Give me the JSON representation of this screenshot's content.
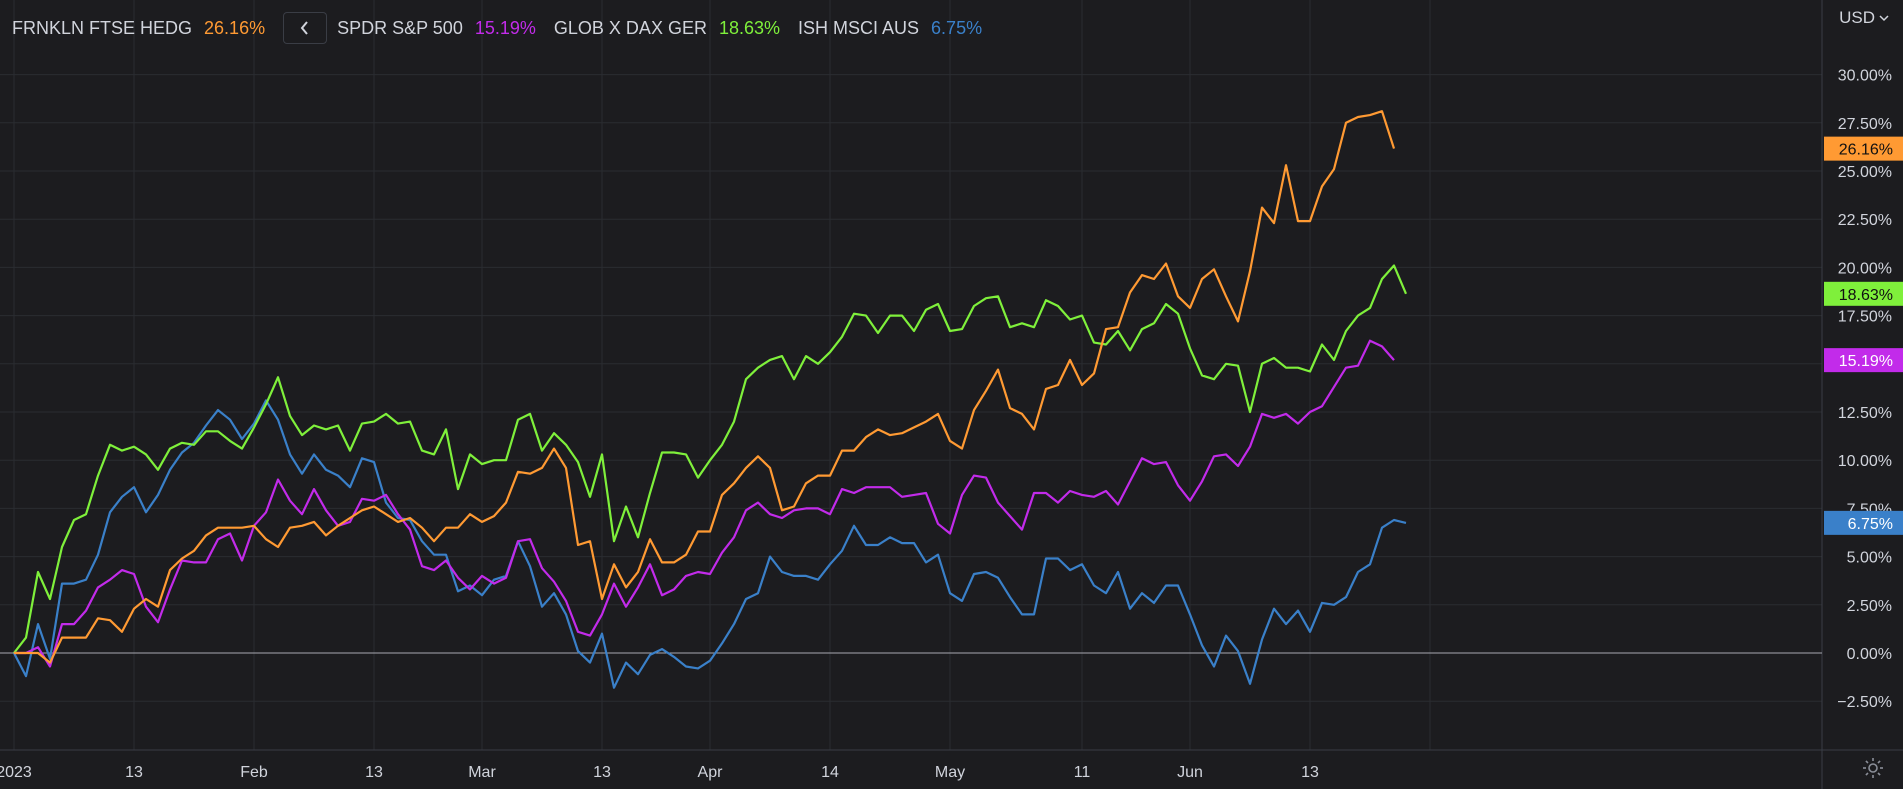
{
  "legend": [
    {
      "name": "FRNKLN FTSE HEDG",
      "value": "26.16%",
      "color": "#ff9a33"
    },
    {
      "name": "SPDR S&P 500",
      "value": "15.19%",
      "color": "#c22bea"
    },
    {
      "name": "GLOB X DAX GER",
      "value": "18.63%",
      "color": "#7ff03b"
    },
    {
      "name": "ISH MSCI AUS",
      "value": "6.75%",
      "color": "#3a80c9"
    }
  ],
  "toolbar": {
    "currency": "USD",
    "collapse_icon": "chevron-left-icon",
    "settings_icon": "gear-icon"
  },
  "chart_data": {
    "type": "line",
    "ylim": [
      -4.5,
      33
    ],
    "y_ticks": [
      -2.5,
      0,
      2.5,
      5,
      7.5,
      10,
      12.5,
      15,
      17.5,
      20,
      22.5,
      25,
      27.5,
      30
    ],
    "y_tick_labels": [
      "−2.50%",
      "0.00%",
      "2.50%",
      "5.00%",
      "7.50%",
      "10.00%",
      "12.50%",
      "15.00%",
      "17.50%",
      "20.00%",
      "22.50%",
      "25.00%",
      "27.50%",
      "30.00%"
    ],
    "x_ticks": [
      0,
      10,
      20,
      30,
      39,
      49,
      58,
      68,
      78,
      89,
      98,
      108,
      118
    ],
    "x_tick_labels": [
      "2023",
      "13",
      "Feb",
      "13",
      "Mar",
      "13",
      "Apr",
      "14",
      "May",
      "11",
      "Jun",
      "13",
      ""
    ],
    "xlim": [
      0,
      117
    ],
    "grid": true,
    "legend_position": "top-left",
    "series": [
      {
        "name": "FRNKLN FTSE HEDG",
        "color": "#ff9a33",
        "last_label": "26.16%",
        "values": [
          0,
          0,
          0,
          -0.5,
          0.8,
          0.8,
          0.8,
          1.8,
          1.7,
          1.1,
          2.3,
          2.8,
          2.4,
          4.3,
          4.9,
          5.3,
          6.1,
          6.5,
          6.5,
          6.5,
          6.6,
          5.9,
          5.5,
          6.5,
          6.6,
          6.8,
          6.1,
          6.6,
          7.0,
          7.4,
          7.6,
          7.2,
          6.8,
          7.0,
          6.5,
          5.8,
          6.5,
          6.5,
          7.2,
          6.8,
          7.1,
          7.8,
          9.4,
          9.3,
          9.6,
          10.6,
          9.6,
          5.6,
          5.8,
          2.8,
          4.6,
          3.4,
          4.2,
          5.9,
          4.7,
          4.7,
          5.1,
          6.3,
          6.3,
          8.2,
          8.8,
          9.6,
          10.2,
          9.6,
          7.4,
          7.6,
          8.8,
          9.2,
          9.2,
          10.5,
          10.5,
          11.2,
          11.6,
          11.3,
          11.4,
          11.7,
          12.0,
          12.4,
          11.0,
          10.6,
          12.6,
          13.6,
          14.7,
          12.7,
          12.4,
          11.6,
          13.7,
          13.9,
          15.2,
          13.9,
          14.5,
          16.8,
          16.9,
          18.7,
          19.6,
          19.4,
          20.2,
          18.5,
          17.9,
          19.4,
          19.9,
          18.5,
          17.2,
          19.8,
          23.1,
          22.3,
          25.3,
          22.4,
          22.4,
          24.2,
          25.1,
          27.5,
          27.8,
          27.9,
          28.1,
          26.16
        ]
      },
      {
        "name": "SPDR S&P 500",
        "color": "#c22bea",
        "last_label": "15.19%",
        "values": [
          0,
          0,
          0.3,
          -0.7,
          1.5,
          1.5,
          2.2,
          3.4,
          3.8,
          4.3,
          4.1,
          2.4,
          1.6,
          3.3,
          4.8,
          4.7,
          4.7,
          5.9,
          6.2,
          4.8,
          6.6,
          7.3,
          9.0,
          7.9,
          7.2,
          8.5,
          7.4,
          6.6,
          6.8,
          8.0,
          7.9,
          8.2,
          7.2,
          6.4,
          4.5,
          4.3,
          4.8,
          3.9,
          3.3,
          4.0,
          3.6,
          3.9,
          5.8,
          5.9,
          4.4,
          3.7,
          2.7,
          1.1,
          0.9,
          2.0,
          3.6,
          2.4,
          3.4,
          4.6,
          3.0,
          3.3,
          4.0,
          4.2,
          4.1,
          5.2,
          6.0,
          7.4,
          7.8,
          7.2,
          7.0,
          7.4,
          7.5,
          7.5,
          7.2,
          8.5,
          8.3,
          8.6,
          8.6,
          8.6,
          8.1,
          8.2,
          8.3,
          6.7,
          6.2,
          8.2,
          9.2,
          9.1,
          7.8,
          7.1,
          6.4,
          8.3,
          8.3,
          7.8,
          8.4,
          8.2,
          8.1,
          8.4,
          7.7,
          8.9,
          10.1,
          9.8,
          9.9,
          8.7,
          7.9,
          8.9,
          10.2,
          10.3,
          9.7,
          10.7,
          12.4,
          12.2,
          12.4,
          11.9,
          12.5,
          12.8,
          13.8,
          14.8,
          14.9,
          16.2,
          15.9,
          15.19
        ]
      },
      {
        "name": "GLOB X DAX GER",
        "color": "#7ff03b",
        "last_label": "18.63%",
        "values": [
          0,
          0.8,
          4.2,
          2.8,
          5.5,
          6.9,
          7.2,
          9.2,
          10.8,
          10.5,
          10.7,
          10.3,
          9.5,
          10.6,
          10.9,
          10.8,
          11.5,
          11.5,
          11.0,
          10.6,
          11.7,
          12.9,
          14.3,
          12.3,
          11.3,
          11.8,
          11.6,
          11.8,
          10.5,
          11.9,
          12.0,
          12.4,
          11.9,
          12.0,
          10.5,
          10.3,
          11.6,
          8.5,
          10.3,
          9.8,
          10.0,
          10.0,
          12.1,
          12.4,
          10.5,
          11.4,
          10.8,
          9.9,
          8.1,
          10.3,
          5.8,
          7.6,
          6.0,
          8.3,
          10.4,
          10.4,
          10.3,
          9.1,
          10.0,
          10.8,
          12.0,
          14.2,
          14.8,
          15.2,
          15.4,
          14.2,
          15.4,
          15.0,
          15.6,
          16.4,
          17.6,
          17.5,
          16.6,
          17.5,
          17.5,
          16.7,
          17.8,
          18.1,
          16.7,
          16.8,
          18.0,
          18.4,
          18.5,
          16.9,
          17.1,
          16.9,
          18.3,
          18.0,
          17.3,
          17.5,
          16.1,
          16.0,
          16.7,
          15.7,
          16.8,
          17.1,
          18.1,
          17.6,
          15.8,
          14.4,
          14.2,
          15.0,
          14.9,
          12.5,
          15.0,
          15.3,
          14.8,
          14.8,
          14.6,
          16.0,
          15.2,
          16.7,
          17.5,
          17.9,
          19.4,
          20.1,
          18.63
        ]
      },
      {
        "name": "ISH MSCI AUS",
        "color": "#3a80c9",
        "last_label": "6.75%",
        "values": [
          0,
          -1.2,
          1.5,
          -0.3,
          3.6,
          3.6,
          3.8,
          5.1,
          7.3,
          8.1,
          8.6,
          7.3,
          8.2,
          9.5,
          10.4,
          10.9,
          11.8,
          12.6,
          12.1,
          11.1,
          11.9,
          13.1,
          12.1,
          10.3,
          9.3,
          10.3,
          9.5,
          9.2,
          8.6,
          10.1,
          9.9,
          7.8,
          7.0,
          6.9,
          5.8,
          5.1,
          5.1,
          3.2,
          3.5,
          3.0,
          3.8,
          4.0,
          5.8,
          4.5,
          2.4,
          3.1,
          2.0,
          0.1,
          -0.5,
          1.0,
          -1.8,
          -0.5,
          -1.1,
          -0.1,
          0.2,
          -0.2,
          -0.7,
          -0.8,
          -0.4,
          0.5,
          1.5,
          2.8,
          3.1,
          5.0,
          4.2,
          4.0,
          4.0,
          3.8,
          4.6,
          5.3,
          6.6,
          5.6,
          5.6,
          6.0,
          5.7,
          5.7,
          4.7,
          5.1,
          3.1,
          2.7,
          4.1,
          4.2,
          3.9,
          2.9,
          2.0,
          2.0,
          4.9,
          4.9,
          4.3,
          4.6,
          3.5,
          3.1,
          4.2,
          2.3,
          3.1,
          2.6,
          3.5,
          3.5,
          2.0,
          0.4,
          -0.7,
          0.9,
          0.1,
          -1.6,
          0.7,
          2.3,
          1.5,
          2.2,
          1.1,
          2.6,
          2.5,
          2.9,
          4.2,
          4.6,
          6.5,
          6.9,
          6.75
        ]
      }
    ]
  }
}
